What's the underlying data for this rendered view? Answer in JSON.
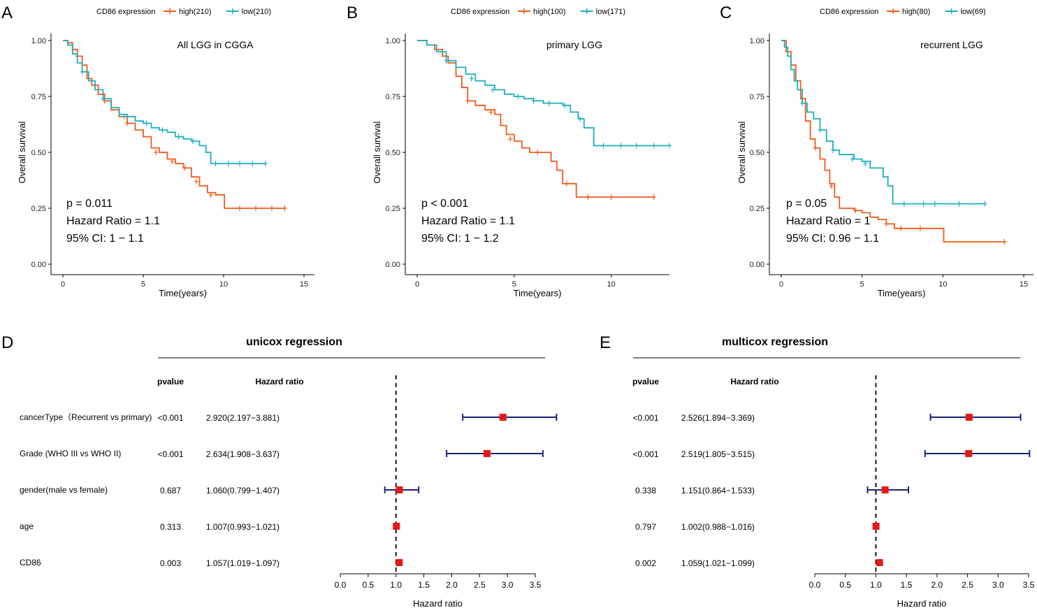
{
  "colors": {
    "high": "#F05A1A",
    "low": "#1AAFBF",
    "ci": "#1A237E",
    "point": "#E51919"
  },
  "chart_data": [
    {
      "panel": "A",
      "type": "line",
      "title": "All LGG in CGGA",
      "legend_title": "CD86 expression",
      "legend": [
        "high(210)",
        "low(210)"
      ],
      "xlabel": "Time(years)",
      "ylabel": "Overall survival",
      "xlim": [
        0,
        15
      ],
      "ylim": [
        0,
        1
      ],
      "xticks": [
        "0",
        "5",
        "10",
        "15"
      ],
      "yticks": [
        "0.00",
        "0.25",
        "0.50",
        "0.75",
        "1.00"
      ],
      "stats": [
        "p = 0.011",
        "Hazard Ratio = 1.1",
        "95% CI: 1 − 1.1"
      ],
      "series": [
        {
          "name": "high",
          "points": [
            [
              0,
              1
            ],
            [
              0.3,
              0.99
            ],
            [
              0.6,
              0.96
            ],
            [
              0.9,
              0.93
            ],
            [
              1.2,
              0.89
            ],
            [
              1.5,
              0.83
            ],
            [
              1.8,
              0.8
            ],
            [
              2.2,
              0.76
            ],
            [
              2.6,
              0.73
            ],
            [
              3,
              0.69
            ],
            [
              3.5,
              0.66
            ],
            [
              4,
              0.63
            ],
            [
              4.5,
              0.6
            ],
            [
              5,
              0.57
            ],
            [
              5.5,
              0.52
            ],
            [
              6,
              0.5
            ],
            [
              6.5,
              0.47
            ],
            [
              7,
              0.45
            ],
            [
              7.5,
              0.43
            ],
            [
              8,
              0.39
            ],
            [
              8.5,
              0.35
            ],
            [
              9,
              0.32
            ],
            [
              9.5,
              0.31
            ],
            [
              10,
              0.31
            ],
            [
              10.05,
              0.25
            ],
            [
              13.8,
              0.25
            ]
          ],
          "censor": [
            [
              0.9,
              0.93
            ],
            [
              2.6,
              0.73
            ],
            [
              4,
              0.63
            ],
            [
              5.8,
              0.5
            ],
            [
              6.8,
              0.46
            ],
            [
              7.6,
              0.43
            ],
            [
              8.3,
              0.37
            ],
            [
              9.2,
              0.31
            ],
            [
              11,
              0.25
            ],
            [
              12,
              0.25
            ],
            [
              13,
              0.25
            ],
            [
              13.8,
              0.25
            ]
          ]
        },
        {
          "name": "low",
          "points": [
            [
              0,
              1
            ],
            [
              0.3,
              0.98
            ],
            [
              0.6,
              0.94
            ],
            [
              0.9,
              0.9
            ],
            [
              1.2,
              0.86
            ],
            [
              1.6,
              0.82
            ],
            [
              2,
              0.78
            ],
            [
              2.5,
              0.74
            ],
            [
              3,
              0.7
            ],
            [
              3.5,
              0.67
            ],
            [
              4,
              0.66
            ],
            [
              4.5,
              0.64
            ],
            [
              5,
              0.63
            ],
            [
              5.5,
              0.61
            ],
            [
              6,
              0.6
            ],
            [
              6.5,
              0.59
            ],
            [
              7,
              0.57
            ],
            [
              7.5,
              0.56
            ],
            [
              8,
              0.55
            ],
            [
              8.5,
              0.53
            ],
            [
              8.9,
              0.5
            ],
            [
              9.2,
              0.45
            ],
            [
              12.6,
              0.45
            ]
          ],
          "censor": [
            [
              1.2,
              0.86
            ],
            [
              2.5,
              0.74
            ],
            [
              3.8,
              0.66
            ],
            [
              5.2,
              0.63
            ],
            [
              6.2,
              0.6
            ],
            [
              7.2,
              0.57
            ],
            [
              8.1,
              0.55
            ],
            [
              9.5,
              0.45
            ],
            [
              10.3,
              0.45
            ],
            [
              11,
              0.45
            ],
            [
              11.8,
              0.45
            ],
            [
              12.6,
              0.45
            ]
          ]
        }
      ]
    },
    {
      "panel": "B",
      "type": "line",
      "title": "primary LGG",
      "legend_title": "CD86 expression",
      "legend": [
        "high(100)",
        "low(171)"
      ],
      "xlabel": "Time(years)",
      "ylabel": "Overall survival",
      "xlim": [
        0,
        13
      ],
      "ylim": [
        0,
        1
      ],
      "xticks": [
        "0",
        "5",
        "10"
      ],
      "yticks": [
        "0.00",
        "0.25",
        "0.50",
        "0.75",
        "1.00"
      ],
      "stats": [
        "p < 0.001",
        "Hazard Ratio = 1.1",
        "95% CI: 1 − 1.2"
      ],
      "series": [
        {
          "name": "high",
          "points": [
            [
              0,
              1
            ],
            [
              0.5,
              0.98
            ],
            [
              0.9,
              0.96
            ],
            [
              1.3,
              0.93
            ],
            [
              1.6,
              0.9
            ],
            [
              2,
              0.84
            ],
            [
              2.3,
              0.79
            ],
            [
              2.6,
              0.73
            ],
            [
              3,
              0.71
            ],
            [
              3.5,
              0.69
            ],
            [
              4,
              0.67
            ],
            [
              4.3,
              0.62
            ],
            [
              4.6,
              0.58
            ],
            [
              5,
              0.55
            ],
            [
              5.4,
              0.52
            ],
            [
              5.8,
              0.5
            ],
            [
              6.5,
              0.5
            ],
            [
              6.9,
              0.46
            ],
            [
              7.2,
              0.42
            ],
            [
              7.5,
              0.36
            ],
            [
              8,
              0.36
            ],
            [
              8.2,
              0.3
            ],
            [
              12.2,
              0.3
            ]
          ],
          "censor": [
            [
              2.6,
              0.73
            ],
            [
              3.8,
              0.68
            ],
            [
              4.8,
              0.56
            ],
            [
              6.2,
              0.5
            ],
            [
              7.7,
              0.36
            ],
            [
              8.8,
              0.3
            ],
            [
              10,
              0.3
            ],
            [
              12.2,
              0.3
            ]
          ]
        },
        {
          "name": "low",
          "points": [
            [
              0,
              1
            ],
            [
              0.5,
              0.98
            ],
            [
              1,
              0.95
            ],
            [
              1.5,
              0.91
            ],
            [
              2,
              0.88
            ],
            [
              2.5,
              0.85
            ],
            [
              3,
              0.82
            ],
            [
              3.5,
              0.8
            ],
            [
              4,
              0.78
            ],
            [
              4.5,
              0.76
            ],
            [
              5,
              0.75
            ],
            [
              5.5,
              0.74
            ],
            [
              6,
              0.73
            ],
            [
              6.5,
              0.72
            ],
            [
              7,
              0.72
            ],
            [
              7.5,
              0.71
            ],
            [
              7.9,
              0.68
            ],
            [
              8.3,
              0.65
            ],
            [
              8.6,
              0.61
            ],
            [
              9,
              0.61
            ],
            [
              9.1,
              0.53
            ],
            [
              13,
              0.53
            ]
          ],
          "censor": [
            [
              1.5,
              0.91
            ],
            [
              2.8,
              0.83
            ],
            [
              3.9,
              0.78
            ],
            [
              5.2,
              0.75
            ],
            [
              6,
              0.73
            ],
            [
              6.8,
              0.72
            ],
            [
              7.6,
              0.71
            ],
            [
              8.4,
              0.65
            ],
            [
              9.6,
              0.53
            ],
            [
              10.5,
              0.53
            ],
            [
              11.3,
              0.53
            ],
            [
              12.2,
              0.53
            ],
            [
              13,
              0.53
            ]
          ]
        }
      ]
    },
    {
      "panel": "C",
      "type": "line",
      "title": "recurrent LGG",
      "legend_title": "CD86 expression",
      "legend": [
        "high(80)",
        "low(69)"
      ],
      "xlabel": "Time(years)",
      "ylabel": "Overall survival",
      "xlim": [
        0,
        15
      ],
      "ylim": [
        0,
        1
      ],
      "xticks": [
        "0",
        "5",
        "10",
        "15"
      ],
      "yticks": [
        "0.00",
        "0.25",
        "0.50",
        "0.75",
        "1.00"
      ],
      "stats": [
        "p = 0.05",
        "Hazard Ratio = 1",
        "95% CI: 0.96 − 1.1"
      ],
      "series": [
        {
          "name": "high",
          "points": [
            [
              0,
              1
            ],
            [
              0.3,
              0.95
            ],
            [
              0.6,
              0.89
            ],
            [
              0.9,
              0.82
            ],
            [
              1.2,
              0.74
            ],
            [
              1.5,
              0.64
            ],
            [
              1.8,
              0.56
            ],
            [
              2.1,
              0.52
            ],
            [
              2.4,
              0.47
            ],
            [
              2.7,
              0.42
            ],
            [
              3,
              0.36
            ],
            [
              3.3,
              0.3
            ],
            [
              3.6,
              0.25
            ],
            [
              4,
              0.25
            ],
            [
              4.5,
              0.24
            ],
            [
              5,
              0.23
            ],
            [
              5.5,
              0.21
            ],
            [
              6,
              0.2
            ],
            [
              6.5,
              0.18
            ],
            [
              7,
              0.16
            ],
            [
              8,
              0.16
            ],
            [
              9,
              0.16
            ],
            [
              10,
              0.16
            ],
            [
              10.05,
              0.1
            ],
            [
              13.8,
              0.1
            ]
          ],
          "censor": [
            [
              2.1,
              0.52
            ],
            [
              3.1,
              0.35
            ],
            [
              4.6,
              0.24
            ],
            [
              6.5,
              0.18
            ],
            [
              7.4,
              0.16
            ],
            [
              8.6,
              0.16
            ],
            [
              13.8,
              0.1
            ]
          ]
        },
        {
          "name": "low",
          "points": [
            [
              0,
              1
            ],
            [
              0.2,
              0.97
            ],
            [
              0.4,
              0.93
            ],
            [
              0.6,
              0.87
            ],
            [
              0.8,
              0.82
            ],
            [
              1,
              0.78
            ],
            [
              1.3,
              0.72
            ],
            [
              1.6,
              0.68
            ],
            [
              2,
              0.65
            ],
            [
              2.4,
              0.6
            ],
            [
              2.8,
              0.55
            ],
            [
              3.2,
              0.51
            ],
            [
              3.6,
              0.49
            ],
            [
              4,
              0.49
            ],
            [
              4.5,
              0.47
            ],
            [
              5,
              0.46
            ],
            [
              5.5,
              0.43
            ],
            [
              6,
              0.43
            ],
            [
              6.3,
              0.39
            ],
            [
              6.6,
              0.35
            ],
            [
              6.9,
              0.27
            ],
            [
              12.6,
              0.27
            ]
          ],
          "censor": [
            [
              1.3,
              0.72
            ],
            [
              2.4,
              0.6
            ],
            [
              3.2,
              0.51
            ],
            [
              4.4,
              0.47
            ],
            [
              5.2,
              0.45
            ],
            [
              7.6,
              0.27
            ],
            [
              8.8,
              0.27
            ],
            [
              9.5,
              0.27
            ],
            [
              11,
              0.27
            ],
            [
              12.6,
              0.27
            ]
          ]
        }
      ]
    },
    {
      "panel": "D",
      "type": "scatter",
      "title": "unicox regression",
      "xlabel": "Hazard ratio",
      "xlim": [
        0,
        3.5
      ],
      "xticks": [
        "0.0",
        "0.5",
        "1.0",
        "1.5",
        "2.0",
        "2.5",
        "3.0",
        "3.5"
      ],
      "col_headers": [
        "pvalue",
        "Hazard ratio"
      ],
      "rows": [
        {
          "label": "cancerType（Recurrent vs primary)",
          "pvalue": "<0.001",
          "hr_text": "2.920(2.197−3.881)",
          "hr": 2.92,
          "lo": 2.197,
          "hi": 3.881
        },
        {
          "label": "Grade (WHO III vs WHO II)",
          "pvalue": "<0.001",
          "hr_text": "2.634(1.908−3.637)",
          "hr": 2.634,
          "lo": 1.908,
          "hi": 3.637
        },
        {
          "label": "gender(male vs female)",
          "pvalue": "0.687",
          "hr_text": "1.060(0.799−1.407)",
          "hr": 1.06,
          "lo": 0.799,
          "hi": 1.407
        },
        {
          "label": "age",
          "pvalue": "0.313",
          "hr_text": "1.007(0.993−1.021)",
          "hr": 1.007,
          "lo": 0.993,
          "hi": 1.021
        },
        {
          "label": "CD86",
          "pvalue": "0.003",
          "hr_text": "1.057(1.019−1.097)",
          "hr": 1.057,
          "lo": 1.019,
          "hi": 1.097
        }
      ]
    },
    {
      "panel": "E",
      "type": "scatter",
      "title": "multicox regression",
      "xlabel": "Hazard ratio",
      "xlim": [
        0,
        3.5
      ],
      "xticks": [
        "0.0",
        "0.5",
        "1.0",
        "1.5",
        "2.0",
        "2.5",
        "3.0",
        "3.5"
      ],
      "col_headers": [
        "pvalue",
        "Hazard ratio"
      ],
      "rows": [
        {
          "pvalue": "<0.001",
          "hr_text": "2.526(1.894−3.369)",
          "hr": 2.526,
          "lo": 1.894,
          "hi": 3.369
        },
        {
          "pvalue": "<0.001",
          "hr_text": "2.519(1.805−3.515)",
          "hr": 2.519,
          "lo": 1.805,
          "hi": 3.515
        },
        {
          "pvalue": "0.338",
          "hr_text": "1.151(0.864−1.533)",
          "hr": 1.151,
          "lo": 0.864,
          "hi": 1.533
        },
        {
          "pvalue": "0.797",
          "hr_text": "1.002(0.988−1.016)",
          "hr": 1.002,
          "lo": 0.988,
          "hi": 1.016
        },
        {
          "pvalue": "0.002",
          "hr_text": "1.059(1.021−1.099)",
          "hr": 1.059,
          "lo": 1.021,
          "hi": 1.099
        }
      ]
    }
  ]
}
